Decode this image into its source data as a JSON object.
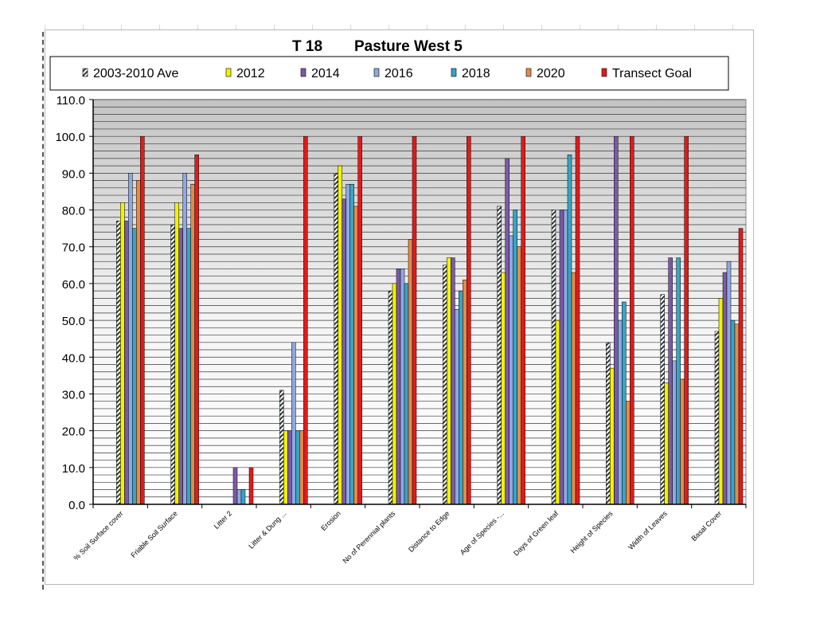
{
  "chart_data": {
    "type": "bar",
    "title_code": "T 18",
    "title": "Pasture West 5",
    "categories": [
      "% Soil Surface cover",
      "Friable Soil Surface",
      "Litter 2",
      "Litter & Dung ...",
      "Erosion",
      "No of Perennial plants",
      "Distance to Edge",
      "Age of Species -...",
      "Days of Green leaf",
      "Height of Species",
      "Width of Leaves",
      "Basal Cover"
    ],
    "series": [
      {
        "name": "2003-2010 Ave",
        "color": "#2f4f4f",
        "pattern": "hatched",
        "values": [
          77,
          76,
          0,
          31,
          90,
          58,
          65,
          81,
          80,
          44,
          57,
          47
        ]
      },
      {
        "name": "2012",
        "color": "#f2f200",
        "values": [
          82,
          82,
          0,
          20,
          92,
          60,
          67,
          63,
          50,
          37,
          33,
          56
        ]
      },
      {
        "name": "2014",
        "color": "#7b5aa6",
        "values": [
          77,
          75,
          10,
          20,
          83,
          64,
          67,
          94,
          80,
          100,
          67,
          63
        ]
      },
      {
        "name": "2016",
        "color": "#8fa8e0",
        "values": [
          90,
          90,
          4,
          44,
          87,
          64,
          53,
          73,
          80,
          50,
          39,
          66
        ]
      },
      {
        "name": "2018",
        "color": "#39a4c6",
        "values": [
          75,
          75,
          4,
          20,
          87,
          60,
          58,
          80,
          95,
          55,
          67,
          50
        ]
      },
      {
        "name": "2020",
        "color": "#e38b4c",
        "values": [
          88,
          87,
          0,
          20,
          81,
          72,
          61,
          70,
          63,
          28,
          34,
          49
        ]
      },
      {
        "name": "Transect Goal",
        "color": "#e01b1b",
        "values": [
          100,
          95,
          10,
          100,
          100,
          100,
          100,
          100,
          100,
          100,
          100,
          75
        ]
      }
    ],
    "ylim": [
      0,
      110
    ],
    "yticks": [
      "0.0",
      "10.0",
      "20.0",
      "30.0",
      "40.0",
      "50.0",
      "60.0",
      "70.0",
      "80.0",
      "90.0",
      "100.0",
      "110.0"
    ],
    "xlabel": "",
    "ylabel": "",
    "grid": true,
    "legend_position": "top"
  }
}
